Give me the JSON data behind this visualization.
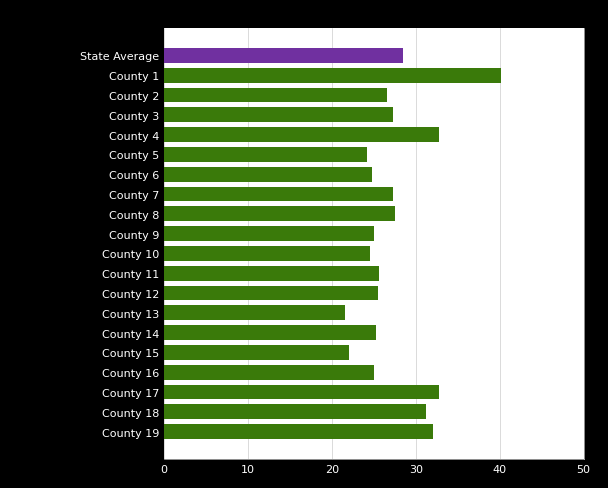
{
  "categories": [
    "State Average",
    "County 1",
    "County 2",
    "County 3",
    "County 4",
    "County 5",
    "County 6",
    "County 7",
    "County 8",
    "County 9",
    "County 10",
    "County 11",
    "County 12",
    "County 13",
    "County 14",
    "County 15",
    "County 16",
    "County 17",
    "County 18",
    "County 19"
  ],
  "values": [
    28.5,
    40.2,
    26.5,
    27.3,
    32.7,
    24.2,
    24.8,
    27.3,
    27.5,
    25.0,
    24.5,
    25.6,
    25.5,
    21.5,
    25.3,
    22.0,
    25.0,
    32.8,
    31.2,
    32.0
  ],
  "bar_colors": [
    "#7030a0",
    "#3a7a0a",
    "#3a7a0a",
    "#3a7a0a",
    "#3a7a0a",
    "#3a7a0a",
    "#3a7a0a",
    "#3a7a0a",
    "#3a7a0a",
    "#3a7a0a",
    "#3a7a0a",
    "#3a7a0a",
    "#3a7a0a",
    "#3a7a0a",
    "#3a7a0a",
    "#3a7a0a",
    "#3a7a0a",
    "#3a7a0a",
    "#3a7a0a",
    "#3a7a0a"
  ],
  "xlim": [
    0,
    50
  ],
  "xticks": [
    0,
    10,
    20,
    30,
    40,
    50
  ],
  "background_color": "#000000",
  "plot_background": "#ffffff",
  "grid_color": "#cccccc",
  "bar_height": 0.75,
  "title_fontsize": 9,
  "tick_fontsize": 8,
  "label_color": "#ffffff"
}
